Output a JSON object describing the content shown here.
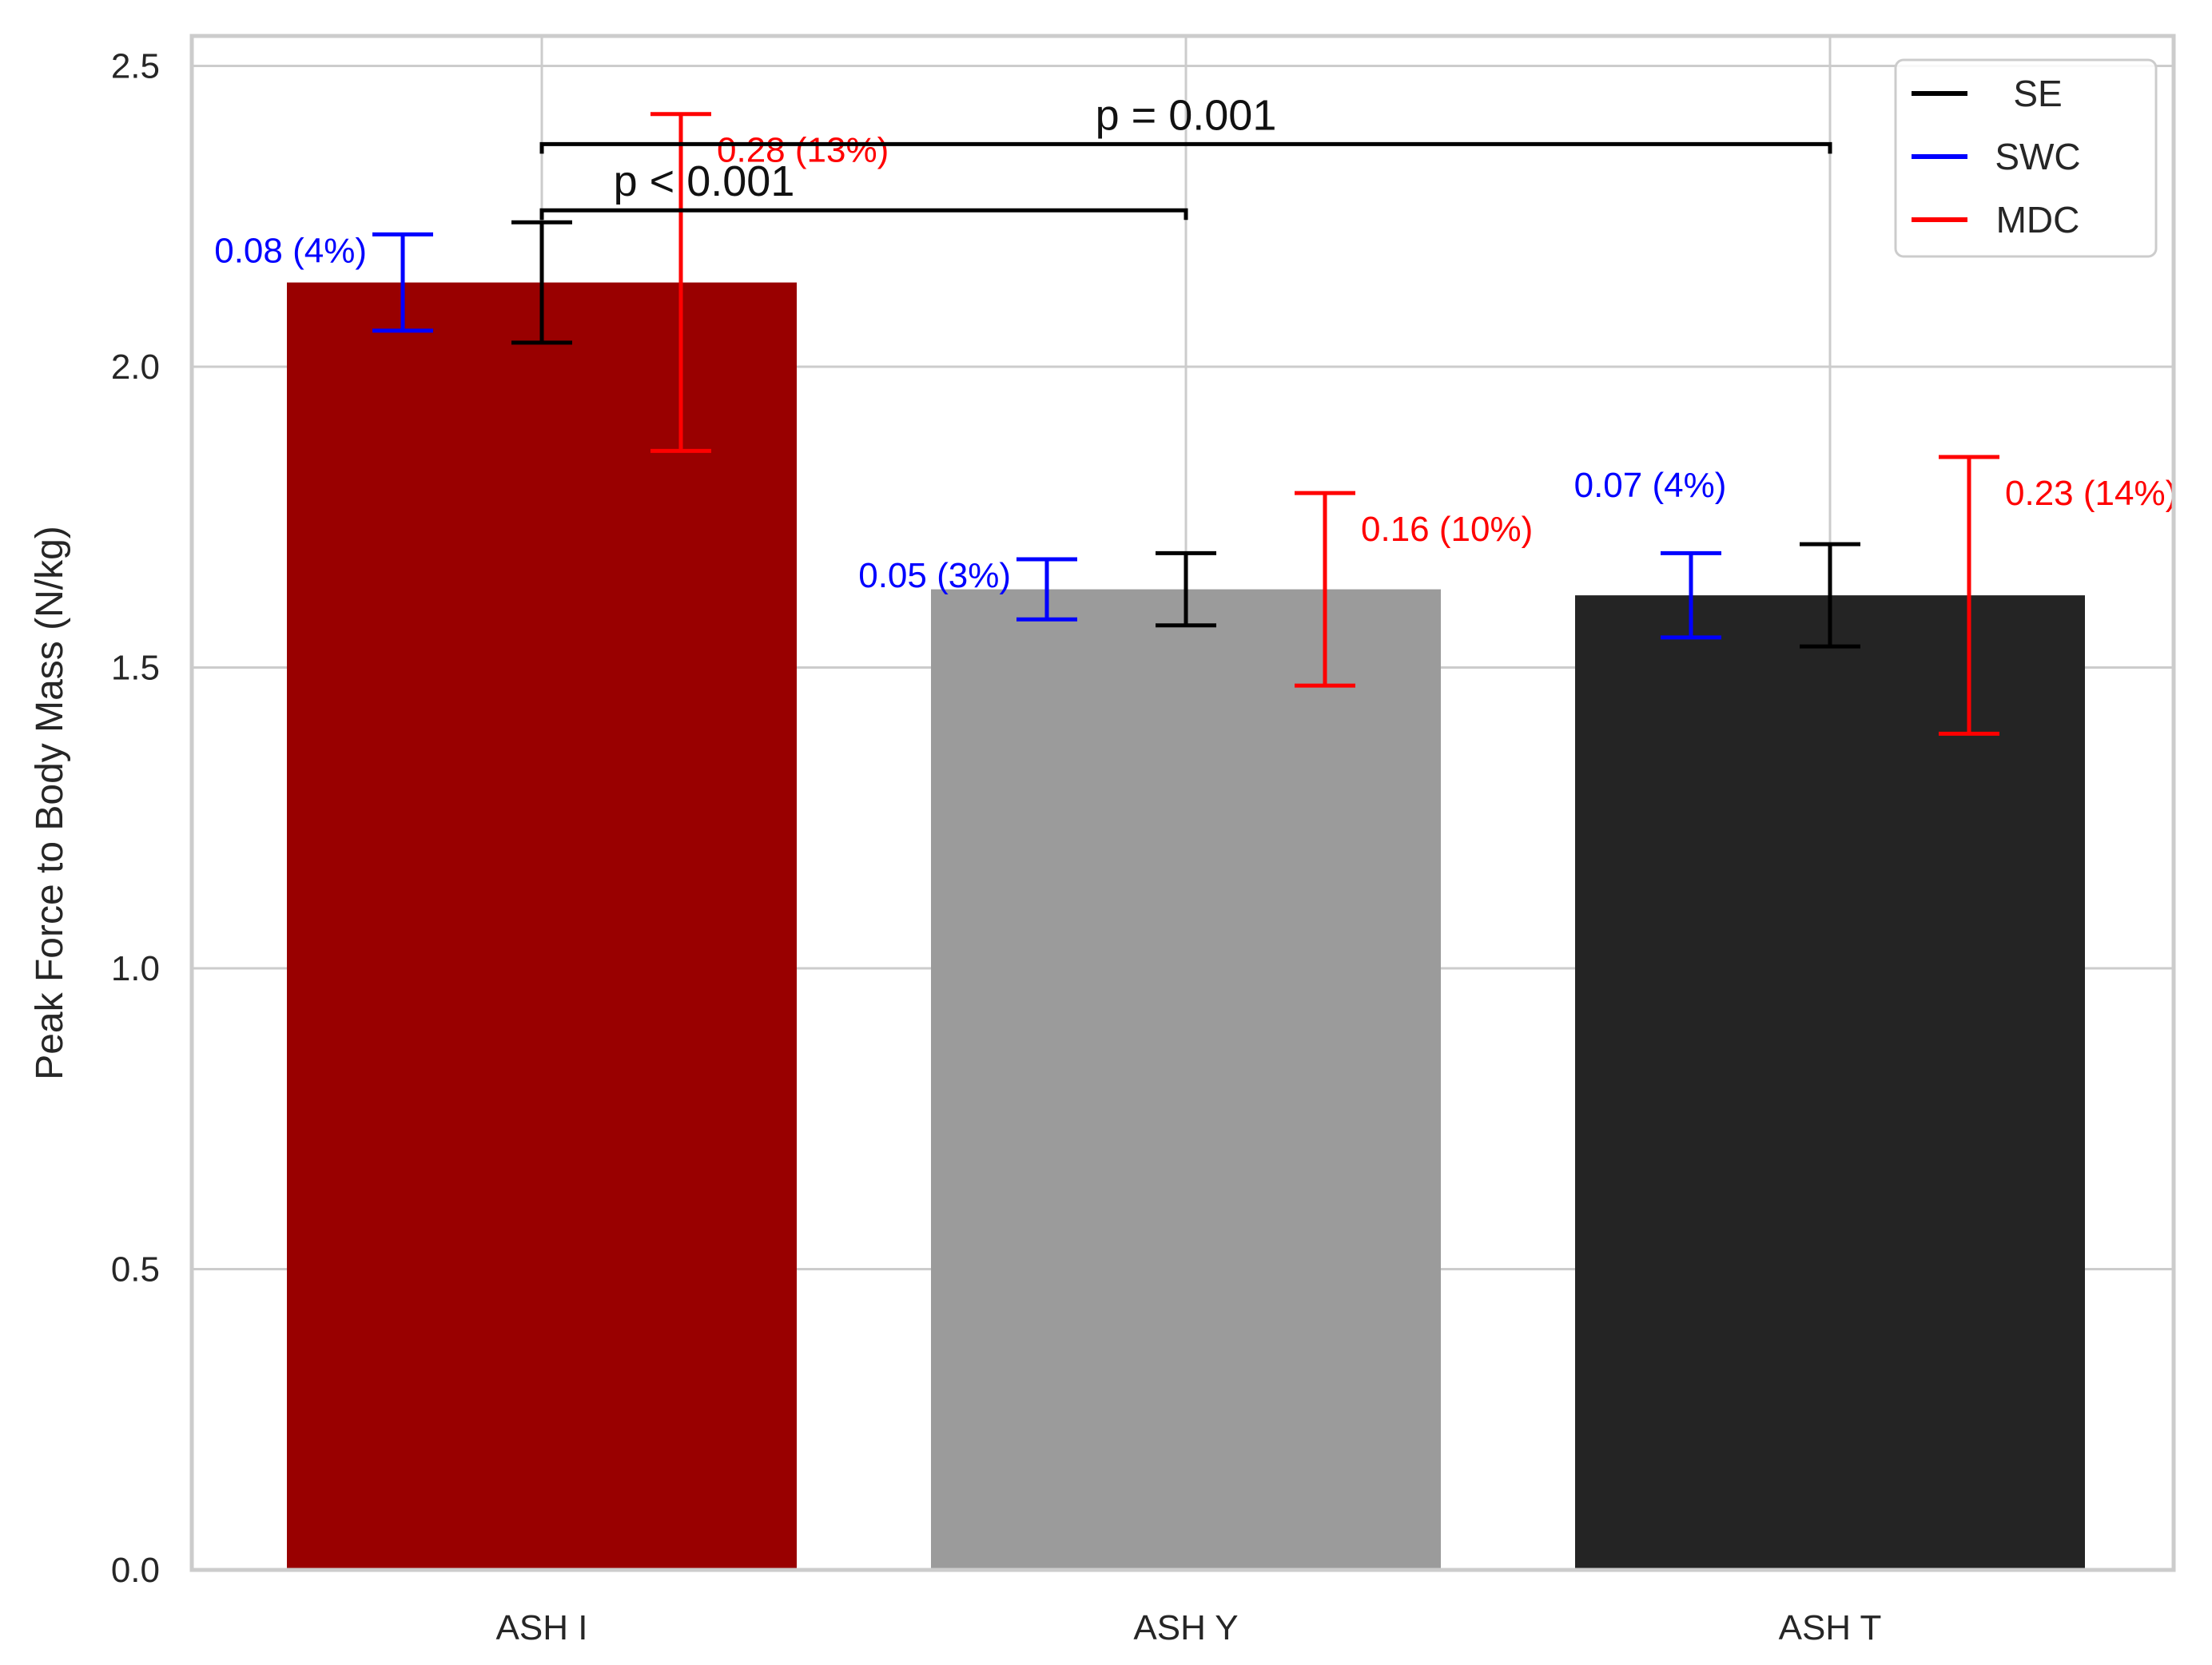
{
  "chart_data": {
    "type": "bar",
    "title": "",
    "xlabel": "",
    "ylabel": "Peak Force to Body Mass (N/kg)",
    "ylim": [
      0,
      2.55
    ],
    "yticks": [
      0.0,
      0.5,
      1.0,
      1.5,
      2.0,
      2.5
    ],
    "ytick_labels": [
      "0.0",
      "0.5",
      "1.0",
      "1.5",
      "2.0",
      "2.5"
    ],
    "grid": true,
    "legend_position": "top-right",
    "categories": [
      "ASH I",
      "ASH Y",
      "ASH T"
    ],
    "values": [
      2.14,
      1.63,
      1.62
    ],
    "bar_colors": [
      "#990000",
      "#9b9b9b",
      "#242424"
    ],
    "error_series": [
      {
        "name": "SE",
        "color": "#000000",
        "half_widths": [
          0.1,
          0.06,
          0.085
        ]
      },
      {
        "name": "SWC",
        "color": "#0000ff",
        "half_widths": [
          0.08,
          0.05,
          0.07
        ]
      },
      {
        "name": "MDC",
        "color": "#ff0000",
        "half_widths": [
          0.28,
          0.16,
          0.23
        ]
      }
    ],
    "annotations": {
      "swc": [
        "0.08 (4%)",
        "0.05 (3%)",
        "0.07 (4%)"
      ],
      "mdc": [
        "0.28 (13%)",
        "0.16 (10%)",
        "0.23 (14%)"
      ]
    },
    "significance": [
      {
        "from": 0,
        "to": 1,
        "y": 2.26,
        "label": "p < 0.001"
      },
      {
        "from": 0,
        "to": 2,
        "y": 2.37,
        "label": "p = 0.001"
      }
    ]
  }
}
